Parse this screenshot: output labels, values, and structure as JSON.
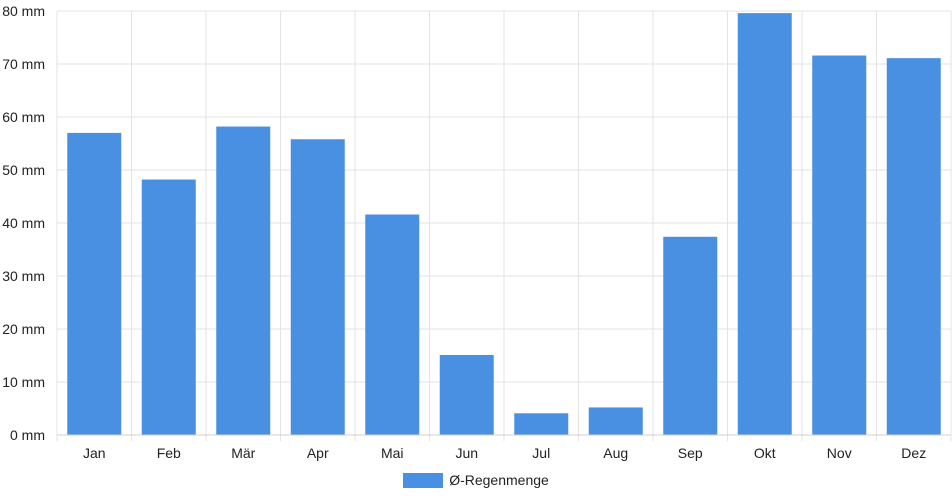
{
  "chart_data": {
    "type": "bar",
    "categories": [
      "Jan",
      "Feb",
      "Mär",
      "Apr",
      "Mai",
      "Jun",
      "Jul",
      "Aug",
      "Sep",
      "Okt",
      "Nov",
      "Dez"
    ],
    "series": [
      {
        "name": "Ø-Regenmenge",
        "values": [
          57,
          48.2,
          58.2,
          55.8,
          41.6,
          15.1,
          4.1,
          5.2,
          37.4,
          79.6,
          71.6,
          71.1
        ],
        "color": "#4a90e2"
      }
    ],
    "y_unit": "mm",
    "ylim": [
      0,
      80
    ],
    "y_ticks": [
      0,
      10,
      20,
      30,
      40,
      50,
      60,
      70,
      80
    ],
    "grid": true,
    "legend_position": "bottom-center"
  }
}
